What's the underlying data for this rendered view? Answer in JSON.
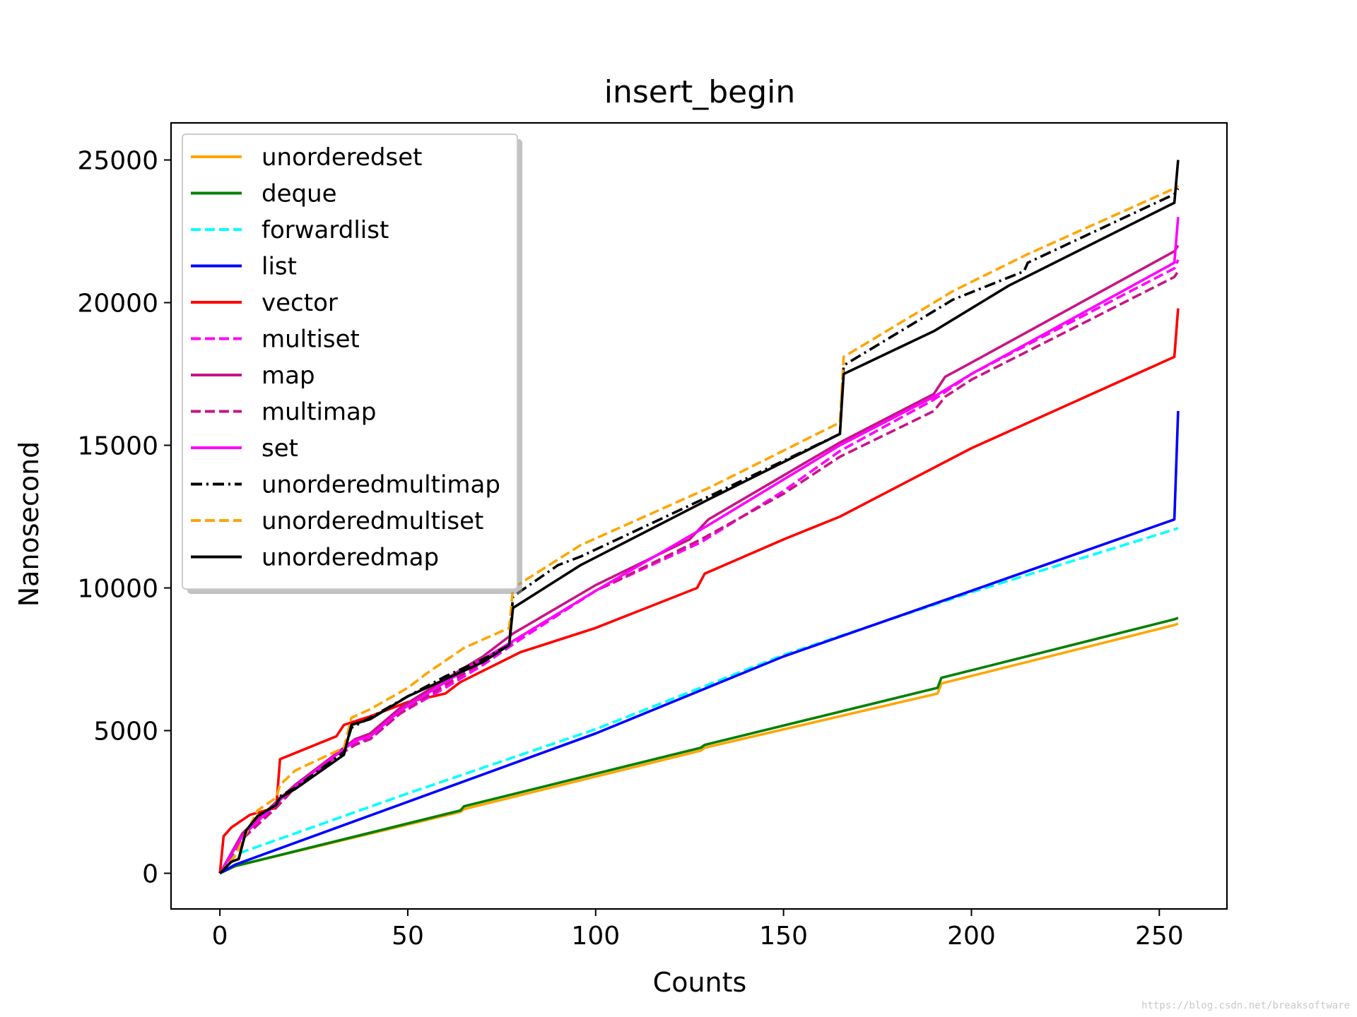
{
  "watermark": "https://blog.csdn.net/breaksoftware",
  "chart_data": {
    "type": "line",
    "title": "insert_begin",
    "xlabel": "Counts",
    "ylabel": "Nanosecond",
    "xlim": [
      -13,
      268
    ],
    "ylim": [
      -1250,
      26300
    ],
    "xticks": [
      0,
      50,
      100,
      150,
      200,
      250
    ],
    "yticks": [
      0,
      5000,
      10000,
      15000,
      20000,
      25000
    ],
    "xtick_labels": [
      "0",
      "50",
      "100",
      "150",
      "200",
      "250"
    ],
    "ytick_labels": [
      "0",
      "5000",
      "10000",
      "15000",
      "20000",
      "25000"
    ],
    "grid": false,
    "legend_position": "upper-left",
    "series": [
      {
        "name": "unorderedset",
        "color": "#ffa500",
        "dash": "solid",
        "points": [
          [
            0,
            0
          ],
          [
            4,
            250
          ],
          [
            64,
            2150
          ],
          [
            65,
            2250
          ],
          [
            128,
            4300
          ],
          [
            129,
            4400
          ],
          [
            191,
            6300
          ],
          [
            192,
            6650
          ],
          [
            254,
            8700
          ],
          [
            255,
            8750
          ]
        ]
      },
      {
        "name": "deque",
        "color": "#008000",
        "dash": "solid",
        "points": [
          [
            0,
            0
          ],
          [
            4,
            250
          ],
          [
            64,
            2200
          ],
          [
            65,
            2350
          ],
          [
            128,
            4400
          ],
          [
            129,
            4500
          ],
          [
            191,
            6500
          ],
          [
            192,
            6850
          ],
          [
            254,
            8900
          ],
          [
            255,
            8950
          ]
        ]
      },
      {
        "name": "forwardlist",
        "color": "#00ffff",
        "dash": "dashed",
        "points": [
          [
            0,
            0
          ],
          [
            4,
            650
          ],
          [
            50,
            2800
          ],
          [
            100,
            5050
          ],
          [
            150,
            7650
          ],
          [
            200,
            9850
          ],
          [
            254,
            12050
          ],
          [
            255,
            12100
          ]
        ]
      },
      {
        "name": "list",
        "color": "#0000ff",
        "dash": "solid",
        "points": [
          [
            0,
            0
          ],
          [
            4,
            300
          ],
          [
            100,
            4900
          ],
          [
            150,
            7600
          ],
          [
            200,
            9900
          ],
          [
            254,
            12400
          ],
          [
            255,
            16200
          ]
        ]
      },
      {
        "name": "vector",
        "color": "#ff0000",
        "dash": "solid",
        "points": [
          [
            0,
            0
          ],
          [
            1,
            1300
          ],
          [
            3,
            1600
          ],
          [
            8,
            2050
          ],
          [
            15,
            2300
          ],
          [
            16,
            4000
          ],
          [
            31,
            4800
          ],
          [
            33,
            5200
          ],
          [
            40,
            5500
          ],
          [
            50,
            6000
          ],
          [
            60,
            6300
          ],
          [
            64,
            6700
          ],
          [
            80,
            7750
          ],
          [
            100,
            8600
          ],
          [
            127,
            10000
          ],
          [
            129,
            10500
          ],
          [
            150,
            11700
          ],
          [
            165,
            12500
          ],
          [
            200,
            14900
          ],
          [
            254,
            18100
          ],
          [
            255,
            19800
          ]
        ]
      },
      {
        "name": "multiset",
        "color": "#ff00ff",
        "dash": "dashed",
        "points": [
          [
            0,
            0
          ],
          [
            6,
            1200
          ],
          [
            15,
            2400
          ],
          [
            20,
            3000
          ],
          [
            30,
            4000
          ],
          [
            36,
            4600
          ],
          [
            40,
            4700
          ],
          [
            48,
            5600
          ],
          [
            60,
            6500
          ],
          [
            70,
            7300
          ],
          [
            80,
            8200
          ],
          [
            100,
            9900
          ],
          [
            128,
            11600
          ],
          [
            150,
            13400
          ],
          [
            165,
            14800
          ],
          [
            190,
            16600
          ],
          [
            200,
            17500
          ],
          [
            254,
            21200
          ],
          [
            255,
            21500
          ]
        ]
      },
      {
        "name": "map",
        "color": "#c71585",
        "dash": "solid",
        "points": [
          [
            0,
            0
          ],
          [
            6,
            1400
          ],
          [
            15,
            2500
          ],
          [
            20,
            3100
          ],
          [
            30,
            4100
          ],
          [
            36,
            4700
          ],
          [
            40,
            4900
          ],
          [
            48,
            5800
          ],
          [
            60,
            6800
          ],
          [
            70,
            7600
          ],
          [
            78,
            8400
          ],
          [
            100,
            10100
          ],
          [
            125,
            11700
          ],
          [
            130,
            12400
          ],
          [
            165,
            15100
          ],
          [
            190,
            16800
          ],
          [
            193,
            17400
          ],
          [
            200,
            17900
          ],
          [
            254,
            21800
          ],
          [
            255,
            22000
          ]
        ]
      },
      {
        "name": "multimap",
        "color": "#c71585",
        "dash": "dashed",
        "points": [
          [
            0,
            0
          ],
          [
            6,
            1200
          ],
          [
            15,
            2300
          ],
          [
            20,
            3000
          ],
          [
            30,
            4000
          ],
          [
            36,
            4500
          ],
          [
            40,
            4700
          ],
          [
            48,
            5600
          ],
          [
            60,
            6600
          ],
          [
            70,
            7400
          ],
          [
            80,
            8300
          ],
          [
            100,
            9900
          ],
          [
            128,
            11700
          ],
          [
            150,
            13300
          ],
          [
            165,
            14600
          ],
          [
            190,
            16200
          ],
          [
            193,
            16700
          ],
          [
            200,
            17300
          ],
          [
            254,
            20900
          ],
          [
            255,
            21100
          ]
        ]
      },
      {
        "name": "set",
        "color": "#ff00ff",
        "dash": "solid",
        "points": [
          [
            0,
            0
          ],
          [
            6,
            1300
          ],
          [
            15,
            2450
          ],
          [
            20,
            3050
          ],
          [
            30,
            4050
          ],
          [
            36,
            4650
          ],
          [
            40,
            4800
          ],
          [
            48,
            5700
          ],
          [
            60,
            6700
          ],
          [
            70,
            7500
          ],
          [
            80,
            8300
          ],
          [
            100,
            9900
          ],
          [
            130,
            12200
          ],
          [
            165,
            15000
          ],
          [
            190,
            16700
          ],
          [
            200,
            17500
          ],
          [
            254,
            21400
          ],
          [
            255,
            23000
          ]
        ]
      },
      {
        "name": "unorderedmultimap",
        "color": "#000000",
        "dash": "dashdot",
        "points": [
          [
            0,
            0
          ],
          [
            3,
            400
          ],
          [
            5,
            500
          ],
          [
            7,
            1500
          ],
          [
            10,
            2000
          ],
          [
            15,
            2400
          ],
          [
            16,
            2700
          ],
          [
            20,
            3000
          ],
          [
            33,
            4250
          ],
          [
            35,
            5100
          ],
          [
            40,
            5450
          ],
          [
            50,
            6200
          ],
          [
            60,
            6900
          ],
          [
            70,
            7500
          ],
          [
            77,
            8000
          ],
          [
            78,
            9700
          ],
          [
            90,
            10800
          ],
          [
            96,
            11100
          ],
          [
            130,
            13200
          ],
          [
            165,
            15400
          ],
          [
            166,
            17800
          ],
          [
            190,
            19700
          ],
          [
            195,
            20100
          ],
          [
            214,
            21100
          ],
          [
            215,
            21400
          ],
          [
            254,
            23800
          ],
          [
            255,
            24000
          ]
        ]
      },
      {
        "name": "unorderedmultiset",
        "color": "#ffa500",
        "dash": "dashed",
        "points": [
          [
            0,
            0
          ],
          [
            4,
            600
          ],
          [
            10,
            2200
          ],
          [
            15,
            2650
          ],
          [
            16,
            3100
          ],
          [
            20,
            3600
          ],
          [
            33,
            4400
          ],
          [
            35,
            5450
          ],
          [
            40,
            5750
          ],
          [
            50,
            6500
          ],
          [
            55,
            7000
          ],
          [
            65,
            7900
          ],
          [
            77,
            8600
          ],
          [
            78,
            10000
          ],
          [
            90,
            11000
          ],
          [
            96,
            11500
          ],
          [
            130,
            13500
          ],
          [
            165,
            15800
          ],
          [
            166,
            18100
          ],
          [
            190,
            20000
          ],
          [
            195,
            20400
          ],
          [
            215,
            21700
          ],
          [
            254,
            24000
          ],
          [
            255,
            24100
          ]
        ]
      },
      {
        "name": "unorderedmap",
        "color": "#000000",
        "dash": "solid",
        "points": [
          [
            0,
            0
          ],
          [
            3,
            400
          ],
          [
            5,
            500
          ],
          [
            7,
            1500
          ],
          [
            10,
            2000
          ],
          [
            15,
            2400
          ],
          [
            16,
            2650
          ],
          [
            20,
            2950
          ],
          [
            33,
            4150
          ],
          [
            35,
            5200
          ],
          [
            40,
            5400
          ],
          [
            50,
            6200
          ],
          [
            60,
            6800
          ],
          [
            70,
            7400
          ],
          [
            77,
            8000
          ],
          [
            78,
            9300
          ],
          [
            90,
            10300
          ],
          [
            96,
            10800
          ],
          [
            130,
            13100
          ],
          [
            165,
            15400
          ],
          [
            166,
            17500
          ],
          [
            190,
            19000
          ],
          [
            200,
            19800
          ],
          [
            210,
            20600
          ],
          [
            254,
            23500
          ],
          [
            255,
            25000
          ]
        ]
      }
    ]
  }
}
